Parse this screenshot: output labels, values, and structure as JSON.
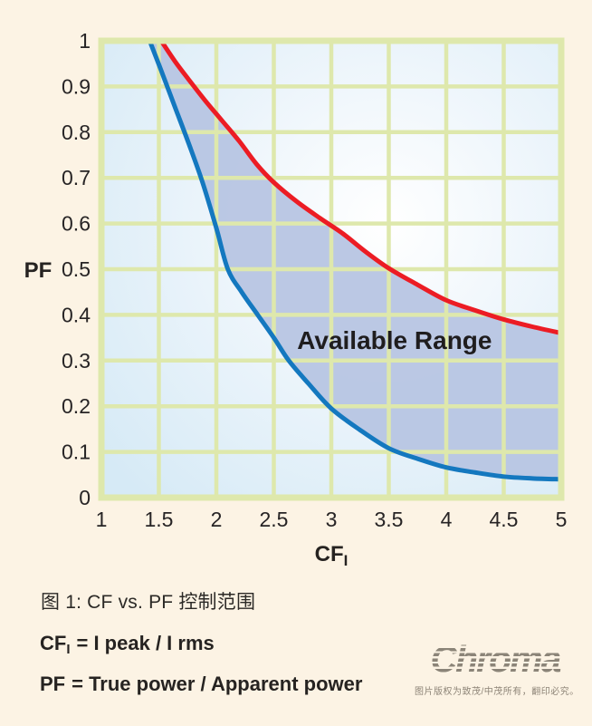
{
  "page": {
    "background": "#fcf3e4"
  },
  "chart_data": {
    "type": "line",
    "title": "",
    "xlabel": "CF",
    "xlabel_sub": "I",
    "ylabel": "PF",
    "xlim": [
      1,
      5
    ],
    "ylim": [
      0,
      1
    ],
    "grid": true,
    "grid_color": "#dee8ac",
    "plot_bg_center": "#ffffff",
    "plot_bg_edge": "#d6eaf6",
    "band_fill": "#b7c5e3",
    "x_ticks": [
      {
        "value": 1,
        "label": "1"
      },
      {
        "value": 1.5,
        "label": "1.5"
      },
      {
        "value": 2,
        "label": "2"
      },
      {
        "value": 2.5,
        "label": "2.5"
      },
      {
        "value": 3,
        "label": "3"
      },
      {
        "value": 3.5,
        "label": "3.5"
      },
      {
        "value": 4,
        "label": "4"
      },
      {
        "value": 4.5,
        "label": "4.5"
      },
      {
        "value": 5,
        "label": "5"
      }
    ],
    "y_ticks": [
      {
        "value": 1,
        "label": "1"
      },
      {
        "value": 0.9,
        "label": "0.9"
      },
      {
        "value": 0.8,
        "label": "0.8"
      },
      {
        "value": 0.7,
        "label": "0.7"
      },
      {
        "value": 0.6,
        "label": "0.6"
      },
      {
        "value": 0.5,
        "label": "0.5"
      },
      {
        "value": 0.4,
        "label": "0.4"
      },
      {
        "value": 0.3,
        "label": "0.3"
      },
      {
        "value": 0.2,
        "label": "0.2"
      },
      {
        "value": 0.1,
        "label": "0.1"
      },
      {
        "value": 0,
        "label": "0"
      }
    ],
    "annotation": {
      "text": "Available Range",
      "cf": 3.55,
      "pf": 0.345
    },
    "series": [
      {
        "name": "upper-limit",
        "color": "#ec1c24",
        "points": [
          [
            1.52,
            1.0
          ],
          [
            1.64,
            0.955
          ],
          [
            1.76,
            0.915
          ],
          [
            1.9,
            0.87
          ],
          [
            2.05,
            0.825
          ],
          [
            2.2,
            0.78
          ],
          [
            2.35,
            0.73
          ],
          [
            2.5,
            0.69
          ],
          [
            2.7,
            0.648
          ],
          [
            2.9,
            0.612
          ],
          [
            3.1,
            0.578
          ],
          [
            3.3,
            0.538
          ],
          [
            3.5,
            0.502
          ],
          [
            3.75,
            0.466
          ],
          [
            4.0,
            0.432
          ],
          [
            4.25,
            0.41
          ],
          [
            4.5,
            0.39
          ],
          [
            4.75,
            0.374
          ],
          [
            5.0,
            0.36
          ]
        ]
      },
      {
        "name": "lower-limit",
        "color": "#1478bf",
        "points": [
          [
            1.42,
            1.0
          ],
          [
            1.52,
            0.935
          ],
          [
            1.64,
            0.855
          ],
          [
            1.76,
            0.775
          ],
          [
            1.88,
            0.69
          ],
          [
            2.0,
            0.59
          ],
          [
            2.1,
            0.5
          ],
          [
            2.22,
            0.45
          ],
          [
            2.36,
            0.4
          ],
          [
            2.5,
            0.35
          ],
          [
            2.63,
            0.3
          ],
          [
            2.8,
            0.25
          ],
          [
            3.0,
            0.195
          ],
          [
            3.25,
            0.148
          ],
          [
            3.5,
            0.108
          ],
          [
            3.75,
            0.085
          ],
          [
            4.0,
            0.066
          ],
          [
            4.25,
            0.055
          ],
          [
            4.5,
            0.046
          ],
          [
            4.75,
            0.042
          ],
          [
            5.0,
            0.04
          ]
        ]
      }
    ]
  },
  "caption": {
    "figure": "图 1: CF vs. PF 控制范围"
  },
  "definitions": {
    "cf_term": "CF",
    "cf_sub": "I",
    "cf_def": "= I peak / I rms",
    "pf_term": "PF",
    "pf_def": "= True power / Apparent power"
  },
  "branding": {
    "logo_text": "Chroma",
    "copyright": "图片版权为致茂/中茂所有，翻印必究。"
  }
}
